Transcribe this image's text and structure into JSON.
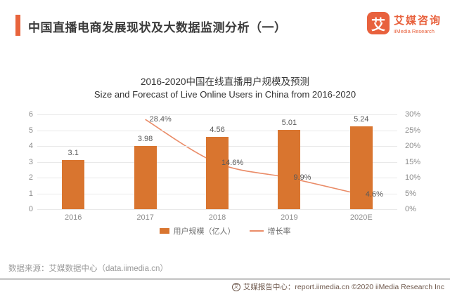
{
  "header": {
    "title": "中国直播电商发展现状及大数据监测分析（一）",
    "logo": {
      "mark": "艾",
      "name_cn": "艾媒咨询",
      "name_en": "iiMedia Research"
    }
  },
  "chart_data": {
    "type": "bar+line",
    "title_cn": "2016-2020中国在线直播用户规模及预测",
    "title_en": "Size and Forecast of Live Online Users in China from 2016-2020",
    "categories": [
      "2016",
      "2017",
      "2018",
      "2019",
      "2020E"
    ],
    "series": [
      {
        "name": "用户规模（亿人）",
        "type": "bar",
        "values": [
          3.1,
          3.98,
          4.56,
          5.01,
          5.24
        ],
        "color": "#d9752f"
      },
      {
        "name": "增长率",
        "type": "line",
        "values": [
          null,
          28.4,
          14.6,
          9.9,
          4.6
        ],
        "unit": "%",
        "color": "#ea8c68"
      }
    ],
    "bar_labels": [
      "3.1",
      "3.98",
      "4.56",
      "5.01",
      "5.24"
    ],
    "line_labels": [
      "28.4%",
      "14.6%",
      "9.9%",
      "4.6%"
    ],
    "left_axis": {
      "min": 0,
      "max": 6,
      "ticks": [
        0,
        1,
        2,
        3,
        4,
        5,
        6
      ]
    },
    "right_axis": {
      "min": 0,
      "max": 30,
      "ticks": [
        "0%",
        "5%",
        "10%",
        "15%",
        "20%",
        "25%",
        "30%"
      ]
    },
    "grid": true,
    "legend": [
      "用户规模（亿人）",
      "增长率"
    ],
    "legend_position": "bottom"
  },
  "source": {
    "text": "数据来源：艾媒数据中心（data.iimedia.cn）"
  },
  "footer": {
    "text": "艾媒报告中心：report.iimedia.cn  ©2020  iiMedia Research Inc",
    "badge": "艾"
  },
  "colors": {
    "accent_orange": "#e8643c",
    "bar_orange": "#d9752f",
    "line_salmon": "#ea8c68",
    "title_text": "#3b3b3b",
    "axis_gray": "#8c8c8c",
    "value_gray": "#595959",
    "source_gray": "#9b9b9b",
    "footer_brown": "#6e584c",
    "gridline": "#e9e9e9"
  }
}
